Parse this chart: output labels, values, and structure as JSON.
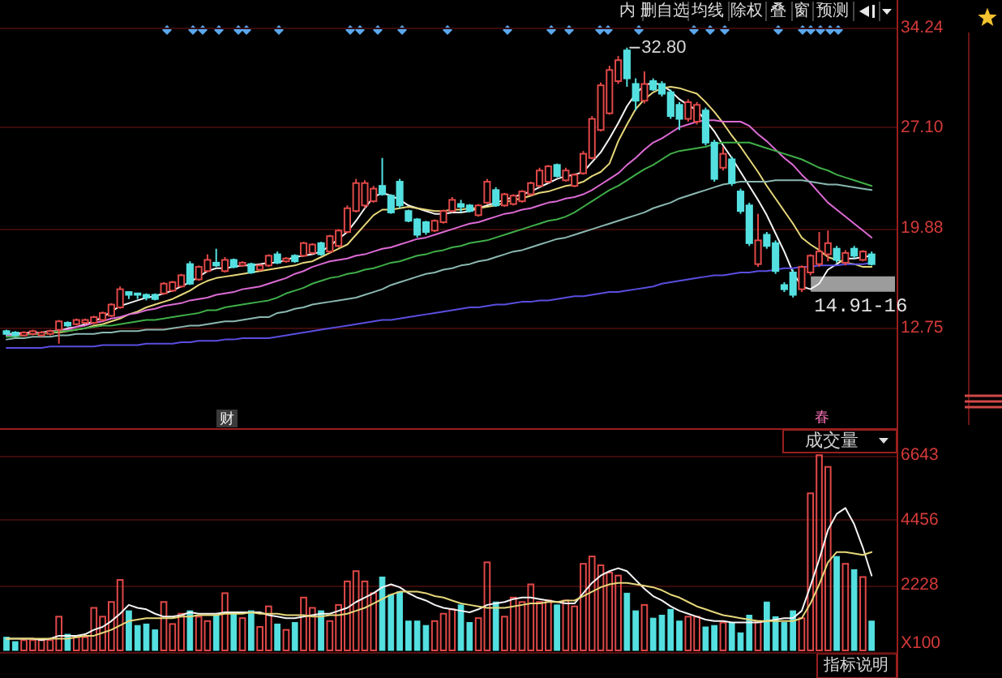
{
  "chart_data": [
    {
      "type": "candlestick",
      "categories": [
        null,
        null,
        null,
        null,
        null,
        null,
        null,
        null,
        null,
        null,
        null,
        null,
        null,
        null,
        null,
        null,
        null,
        null,
        null,
        null,
        null,
        null,
        null,
        null,
        null,
        null,
        null,
        null,
        null,
        null,
        null,
        null,
        null,
        null,
        null,
        null,
        null,
        null,
        null,
        null,
        null,
        null,
        null,
        null,
        null,
        null,
        null,
        null,
        null,
        null,
        null,
        null,
        null,
        null,
        null,
        null,
        null,
        null,
        null,
        null,
        null,
        null,
        null,
        null,
        null,
        null,
        null,
        null,
        null,
        null,
        null,
        null,
        null,
        null,
        null,
        null,
        null,
        null,
        null,
        null,
        null,
        null,
        null,
        null,
        null,
        null,
        null,
        null,
        null,
        null,
        null,
        null,
        null,
        null,
        null,
        null,
        null,
        null,
        null,
        null
      ],
      "ohlc": [
        [
          12.5,
          12.6,
          12.2,
          12.3
        ],
        [
          12.4,
          12.5,
          12.1,
          12.2
        ],
        [
          12.2,
          12.5,
          12.1,
          12.4
        ],
        [
          12.3,
          12.6,
          12.2,
          12.5
        ],
        [
          12.2,
          12.5,
          12.1,
          12.4
        ],
        [
          12.3,
          12.6,
          12.2,
          12.5
        ],
        [
          12.6,
          13.3,
          11.6,
          13.2
        ],
        [
          13.1,
          13.2,
          12.8,
          12.9
        ],
        [
          13.0,
          13.4,
          12.9,
          13.3
        ],
        [
          13.1,
          13.4,
          13.0,
          13.3
        ],
        [
          13.1,
          13.6,
          13.0,
          13.5
        ],
        [
          13.3,
          13.9,
          13.2,
          13.8
        ],
        [
          13.6,
          14.5,
          13.5,
          14.4
        ],
        [
          14.2,
          15.7,
          14.1,
          15.5
        ],
        [
          15.3,
          15.3,
          14.8,
          15.1
        ],
        [
          15.2,
          15.2,
          14.8,
          15.1
        ],
        [
          15.1,
          15.2,
          14.7,
          14.9
        ],
        [
          15.1,
          15.2,
          14.7,
          14.8
        ],
        [
          15.2,
          16.0,
          15.1,
          15.9
        ],
        [
          15.4,
          16.1,
          15.3,
          16.0
        ],
        [
          15.7,
          16.6,
          15.6,
          16.5
        ],
        [
          17.3,
          17.5,
          15.8,
          15.9
        ],
        [
          16.2,
          17.2,
          16.1,
          17.1
        ],
        [
          16.8,
          18.0,
          16.7,
          17.6
        ],
        [
          17.4,
          18.4,
          17.1,
          17.2
        ],
        [
          16.8,
          17.8,
          16.7,
          17.6
        ],
        [
          17.6,
          17.7,
          17.0,
          17.1
        ],
        [
          17.2,
          17.5,
          17.1,
          17.4
        ],
        [
          17.3,
          17.4,
          16.6,
          16.7
        ],
        [
          16.9,
          17.3,
          16.8,
          17.2
        ],
        [
          17.2,
          18.0,
          17.1,
          17.9
        ],
        [
          18.0,
          18.2,
          17.3,
          17.4
        ],
        [
          17.5,
          17.8,
          17.4,
          17.7
        ],
        [
          17.9,
          18.0,
          17.4,
          17.5
        ],
        [
          17.9,
          18.9,
          17.8,
          18.8
        ],
        [
          18.1,
          18.8,
          18.0,
          18.7
        ],
        [
          18.8,
          18.9,
          17.9,
          18.0
        ],
        [
          18.2,
          19.4,
          18.1,
          19.3
        ],
        [
          18.6,
          19.8,
          18.5,
          19.7
        ],
        [
          19.6,
          21.5,
          19.5,
          21.3
        ],
        [
          21.1,
          23.4,
          21.0,
          23.1
        ],
        [
          21.5,
          23.3,
          21.3,
          23.1
        ],
        [
          21.8,
          22.9,
          21.7,
          22.7
        ],
        [
          22.9,
          24.9,
          22.2,
          22.3
        ],
        [
          22.2,
          22.3,
          20.9,
          21.0
        ],
        [
          23.2,
          23.4,
          21.3,
          21.5
        ],
        [
          21.1,
          21.2,
          20.3,
          20.4
        ],
        [
          20.5,
          20.6,
          19.2,
          19.4
        ],
        [
          20.3,
          20.4,
          19.4,
          19.6
        ],
        [
          19.7,
          20.5,
          19.6,
          20.4
        ],
        [
          20.3,
          21.2,
          20.2,
          21.1
        ],
        [
          21.1,
          22.1,
          21.0,
          21.9
        ],
        [
          21.6,
          21.9,
          21.0,
          21.4
        ],
        [
          21.5,
          21.6,
          21.0,
          21.1
        ],
        [
          20.8,
          21.6,
          20.7,
          21.5
        ],
        [
          21.7,
          23.4,
          21.6,
          23.2
        ],
        [
          22.6,
          22.8,
          21.4,
          21.5
        ],
        [
          21.5,
          22.4,
          21.4,
          22.3
        ],
        [
          21.6,
          22.3,
          21.5,
          22.2
        ],
        [
          21.8,
          22.6,
          21.7,
          22.5
        ],
        [
          22.3,
          23.2,
          22.2,
          23.1
        ],
        [
          22.9,
          24.2,
          22.8,
          24.0
        ],
        [
          23.2,
          24.4,
          23.1,
          24.3
        ],
        [
          24.4,
          24.5,
          23.5,
          23.6
        ],
        [
          23.3,
          24.2,
          23.2,
          24.0
        ],
        [
          22.9,
          23.8,
          22.8,
          23.7
        ],
        [
          23.8,
          25.4,
          23.7,
          25.2
        ],
        [
          24.9,
          27.9,
          24.8,
          27.7
        ],
        [
          26.9,
          30.3,
          26.8,
          30.1
        ],
        [
          28.1,
          31.5,
          28.0,
          31.2
        ],
        [
          30.4,
          32.2,
          30.2,
          31.9
        ],
        [
          32.6,
          32.8,
          30.0,
          30.6
        ],
        [
          30.2,
          30.6,
          28.3,
          29.0
        ],
        [
          29.0,
          31.1,
          28.8,
          30.2
        ],
        [
          30.4,
          30.6,
          29.7,
          29.8
        ],
        [
          30.2,
          30.4,
          29.3,
          29.5
        ],
        [
          29.6,
          29.8,
          27.7,
          27.9
        ],
        [
          28.7,
          28.9,
          26.9,
          27.7
        ],
        [
          27.7,
          29.1,
          27.5,
          28.9
        ],
        [
          27.5,
          28.9,
          27.3,
          28.7
        ],
        [
          28.3,
          28.5,
          25.8,
          26.0
        ],
        [
          26.0,
          26.2,
          23.2,
          23.4
        ],
        [
          24.2,
          25.7,
          24.0,
          25.2
        ],
        [
          24.8,
          25.0,
          22.9,
          23.1
        ],
        [
          22.5,
          22.7,
          20.9,
          21.1
        ],
        [
          21.5,
          21.7,
          18.6,
          18.8
        ],
        [
          17.3,
          20.9,
          17.1,
          19.0
        ],
        [
          19.4,
          19.6,
          18.4,
          18.6
        ],
        [
          18.8,
          19.0,
          16.6,
          16.8
        ],
        [
          15.8,
          16.0,
          15.3,
          15.5
        ],
        [
          16.7,
          16.9,
          14.91,
          15.1
        ],
        [
          15.5,
          17.2,
          15.3,
          17.1
        ],
        [
          16.7,
          18.0,
          16.5,
          17.9
        ],
        [
          17.3,
          19.6,
          17.1,
          18.2
        ],
        [
          18.0,
          19.7,
          17.5,
          18.8
        ],
        [
          18.4,
          18.6,
          17.4,
          17.6
        ],
        [
          17.4,
          18.3,
          17.2,
          18.1
        ],
        [
          18.4,
          18.6,
          17.7,
          17.9
        ],
        [
          17.6,
          18.3,
          17.5,
          18.2
        ],
        [
          18.0,
          18.2,
          17.2,
          17.3
        ]
      ],
      "colors": [
        "#54e0e0",
        "#54e0e0",
        "#e04848",
        "#e04848",
        "#e04848",
        "#e04848",
        "#e04848",
        "#54e0e0",
        "#e04848",
        "#e04848",
        "#e04848",
        "#e04848",
        "#e04848",
        "#e04848",
        "#54e0e0",
        "#54e0e0",
        "#54e0e0",
        "#54e0e0",
        "#e04848",
        "#e04848",
        "#e04848",
        "#54e0e0",
        "#e04848",
        "#e04848",
        "#54e0e0",
        "#e04848",
        "#54e0e0",
        "#e04848",
        "#54e0e0",
        "#e04848",
        "#e04848",
        "#54e0e0",
        "#e04848",
        "#54e0e0",
        "#e04848",
        "#e04848",
        "#54e0e0",
        "#e04848",
        "#e04848",
        "#e04848",
        "#e04848",
        "#e04848",
        "#e04848",
        "#54e0e0",
        "#54e0e0",
        "#54e0e0",
        "#54e0e0",
        "#54e0e0",
        "#54e0e0",
        "#e04848",
        "#e04848",
        "#e04848",
        "#54e0e0",
        "#54e0e0",
        "#e04848",
        "#e04848",
        "#54e0e0",
        "#e04848",
        "#e04848",
        "#e04848",
        "#e04848",
        "#e04848",
        "#e04848",
        "#54e0e0",
        "#e04848",
        "#e04848",
        "#e04848",
        "#e04848",
        "#e04848",
        "#e04848",
        "#e04848",
        "#54e0e0",
        "#54e0e0",
        "#e04848",
        "#54e0e0",
        "#54e0e0",
        "#54e0e0",
        "#54e0e0",
        "#e04848",
        "#e04848",
        "#54e0e0",
        "#54e0e0",
        "#e04848",
        "#54e0e0",
        "#54e0e0",
        "#54e0e0",
        "#e04848",
        "#54e0e0",
        "#54e0e0",
        "#54e0e0",
        "#54e0e0",
        "#e04848",
        "#e04848",
        "#e04848",
        "#e04848",
        "#54e0e0",
        "#e04848",
        "#54e0e0",
        "#e04848",
        "#54e0e0"
      ],
      "series": [
        {
          "type": "line",
          "color": "#f4f4f4",
          "values": [
            12.3,
            12.3,
            12.4,
            12.4,
            12.4,
            12.5,
            12.5,
            12.7,
            12.8,
            13.0,
            13.2,
            13.5,
            13.9,
            14.3,
            14.5,
            14.7,
            14.9,
            15.0,
            15.2,
            15.4,
            15.7,
            16.0,
            16.4,
            16.8,
            17.0,
            17.0,
            17.1,
            17.2,
            17.2,
            17.3,
            17.4,
            17.4,
            17.6,
            17.8,
            17.9,
            18.0,
            18.2,
            18.6,
            19.1,
            19.6,
            20.4,
            21.3,
            22.1,
            22.4,
            22.2,
            21.9,
            21.5,
            21.3,
            21.1,
            20.9,
            20.9,
            21.0,
            21.0,
            21.1,
            21.3,
            21.5,
            21.7,
            21.9,
            22.1,
            22.3,
            22.5,
            22.8,
            23.1,
            23.4,
            23.6,
            23.7,
            23.9,
            24.6,
            25.3,
            26.3,
            27.4,
            28.6,
            29.5,
            30.1,
            30.3,
            30.1,
            29.7,
            29.1,
            28.7,
            28.3,
            27.6,
            26.8,
            25.8,
            24.9,
            23.9,
            22.9,
            21.9,
            20.8,
            19.5,
            18.2,
            16.7,
            15.7,
            15.5,
            15.9,
            16.9,
            17.3,
            17.7,
            17.7,
            17.8,
            17.9
          ]
        },
        {
          "type": "line",
          "color": "#e6d77a",
          "values": [
            12.2,
            12.2,
            12.3,
            12.3,
            12.3,
            12.4,
            12.4,
            12.5,
            12.6,
            12.7,
            12.9,
            13.0,
            13.2,
            13.4,
            13.7,
            13.9,
            14.2,
            14.4,
            14.6,
            14.8,
            15.1,
            15.4,
            15.8,
            16.1,
            16.3,
            16.4,
            16.5,
            16.6,
            16.7,
            16.8,
            16.9,
            17.0,
            17.1,
            17.2,
            17.4,
            17.5,
            17.8,
            18.1,
            18.4,
            18.7,
            19.4,
            20.1,
            20.8,
            21.2,
            21.2,
            21.3,
            21.4,
            21.3,
            21.2,
            21.1,
            21.1,
            21.2,
            21.2,
            21.3,
            21.3,
            21.4,
            21.5,
            21.7,
            21.9,
            22.0,
            22.2,
            22.4,
            22.5,
            22.7,
            22.9,
            23.0,
            23.2,
            23.6,
            23.9,
            24.5,
            26.1,
            27.3,
            28.4,
            29.1,
            29.6,
            29.9,
            30.0,
            29.9,
            29.7,
            29.5,
            28.9,
            28.2,
            27.4,
            26.5,
            25.7,
            24.8,
            23.9,
            22.9,
            22.0,
            21.1,
            20.2,
            19.2,
            18.7,
            18.3,
            17.8,
            17.6,
            17.4,
            17.3,
            17.1,
            17.1
          ]
        },
        {
          "type": "line",
          "color": "#dc6ad4",
          "values": [
            12.2,
            12.2,
            12.3,
            12.3,
            12.4,
            12.4,
            12.5,
            12.6,
            12.8,
            12.9,
            13.1,
            13.2,
            13.4,
            13.5,
            13.7,
            13.8,
            14.0,
            14.1,
            14.3,
            14.4,
            14.5,
            14.7,
            14.8,
            14.9,
            15.1,
            15.2,
            15.3,
            15.5,
            15.6,
            15.7,
            15.9,
            16.1,
            16.3,
            16.6,
            16.8,
            17.1,
            17.3,
            17.5,
            17.6,
            17.7,
            17.9,
            18.0,
            18.2,
            18.4,
            18.5,
            18.7,
            18.9,
            19.1,
            19.2,
            19.4,
            19.6,
            19.8,
            20.0,
            20.2,
            20.3,
            20.5,
            20.7,
            20.9,
            21.0,
            21.2,
            21.3,
            21.5,
            21.7,
            21.8,
            22.0,
            22.1,
            22.3,
            22.6,
            23.0,
            23.4,
            23.8,
            24.4,
            24.9,
            25.5,
            26.0,
            26.3,
            26.7,
            27.1,
            27.3,
            27.5,
            27.6,
            27.6,
            27.5,
            27.5,
            27.5,
            27.2,
            26.6,
            26.1,
            25.5,
            24.9,
            24.4,
            23.7,
            23.1,
            22.4,
            21.7,
            21.2,
            20.7,
            20.2,
            19.7,
            19.2
          ]
        },
        {
          "type": "line",
          "color": "#3fae48",
          "values": [
            12.1,
            12.1,
            12.2,
            12.3,
            12.3,
            12.4,
            12.5,
            12.5,
            12.6,
            12.7,
            12.8,
            12.9,
            12.9,
            13.0,
            13.1,
            13.2,
            13.3,
            13.3,
            13.4,
            13.5,
            13.6,
            13.7,
            13.8,
            14.0,
            14.0,
            14.2,
            14.3,
            14.4,
            14.5,
            14.6,
            14.7,
            14.9,
            15.2,
            15.4,
            15.6,
            15.9,
            16.1,
            16.3,
            16.4,
            16.6,
            16.7,
            16.9,
            17.0,
            17.2,
            17.4,
            17.5,
            17.7,
            17.9,
            18.0,
            18.2,
            18.3,
            18.5,
            18.6,
            18.8,
            18.9,
            19.0,
            19.2,
            19.4,
            19.6,
            19.8,
            20.0,
            20.2,
            20.4,
            20.5,
            20.7,
            21.0,
            21.4,
            21.8,
            22.2,
            22.6,
            22.9,
            23.3,
            23.7,
            24.1,
            24.4,
            24.8,
            25.2,
            25.4,
            25.5,
            25.6,
            25.7,
            25.9,
            26.0,
            26.0,
            26.0,
            26.0,
            25.8,
            25.6,
            25.4,
            25.2,
            25.0,
            24.8,
            24.5,
            24.2,
            24.0,
            23.7,
            23.5,
            23.3,
            23.1,
            22.9
          ]
        },
        {
          "type": "line",
          "color": "#8ab8b0",
          "values": [
            11.9,
            12.0,
            12.0,
            12.1,
            12.1,
            12.1,
            12.2,
            12.2,
            12.3,
            12.3,
            12.3,
            12.4,
            12.4,
            12.5,
            12.5,
            12.5,
            12.6,
            12.6,
            12.6,
            12.7,
            12.8,
            12.9,
            12.9,
            13.0,
            13.1,
            13.2,
            13.2,
            13.3,
            13.4,
            13.5,
            13.5,
            13.8,
            13.9,
            14.1,
            14.2,
            14.4,
            14.5,
            14.6,
            14.7,
            14.8,
            14.9,
            15.1,
            15.3,
            15.5,
            15.8,
            16.0,
            16.2,
            16.4,
            16.6,
            16.7,
            16.9,
            17.0,
            17.2,
            17.3,
            17.5,
            17.6,
            17.8,
            18.0,
            18.2,
            18.3,
            18.5,
            18.7,
            18.9,
            19.1,
            19.2,
            19.4,
            19.6,
            19.8,
            20.0,
            20.2,
            20.4,
            20.6,
            20.8,
            21.0,
            21.3,
            21.5,
            21.7,
            22.0,
            22.2,
            22.4,
            22.6,
            22.8,
            23.0,
            23.1,
            23.2,
            23.2,
            23.2,
            23.2,
            23.3,
            23.3,
            23.3,
            23.3,
            23.2,
            23.1,
            23.0,
            23.0,
            22.9,
            22.8,
            22.7,
            22.6
          ]
        },
        {
          "type": "line",
          "color": "#5a4ee0",
          "values": [
            11.3,
            11.3,
            11.3,
            11.3,
            11.3,
            11.4,
            11.4,
            11.4,
            11.4,
            11.4,
            11.4,
            11.5,
            11.5,
            11.5,
            11.5,
            11.5,
            11.6,
            11.6,
            11.6,
            11.6,
            11.7,
            11.7,
            11.8,
            11.8,
            11.8,
            11.9,
            11.9,
            12.0,
            12.0,
            12.0,
            12.0,
            12.1,
            12.2,
            12.3,
            12.4,
            12.5,
            12.6,
            12.7,
            12.8,
            12.9,
            13.0,
            13.1,
            13.2,
            13.3,
            13.3,
            13.4,
            13.5,
            13.6,
            13.7,
            13.8,
            13.9,
            14.0,
            14.1,
            14.2,
            14.2,
            14.3,
            14.4,
            14.4,
            14.5,
            14.6,
            14.6,
            14.7,
            14.7,
            14.8,
            14.9,
            15.0,
            15.0,
            15.1,
            15.2,
            15.3,
            15.3,
            15.4,
            15.5,
            15.6,
            15.7,
            15.9,
            16.0,
            16.1,
            16.2,
            16.3,
            16.4,
            16.5,
            16.5,
            16.6,
            16.7,
            16.7,
            16.8,
            16.8,
            16.9,
            17.0,
            17.0,
            17.1,
            17.1,
            17.2,
            17.2,
            17.2,
            17.3,
            17.3,
            17.3,
            17.4
          ]
        }
      ],
      "ylim": [
        5.49,
        36.21
      ],
      "yticks": [
        34.24,
        {
          "value": 27.1,
          "label": "27.10"
        },
        19.88,
        12.75
      ],
      "grid": "y",
      "tick_labels": "y",
      "annotations": [
        "32.80",
        "14.91-16",
        "财",
        "春",
        "内",
        "删自选",
        "均线",
        "除权",
        "叠",
        "窗",
        "预测"
      ]
    },
    {
      "type": "bar",
      "title": "成交量",
      "ylabel": "X100",
      "categories": [
        null,
        null,
        null,
        null,
        null,
        null,
        null,
        null,
        null,
        null,
        null,
        null,
        null,
        null,
        null,
        null,
        null,
        null,
        null,
        null,
        null,
        null,
        null,
        null,
        null,
        null,
        null,
        null,
        null,
        null,
        null,
        null,
        null,
        null,
        null,
        null,
        null,
        null,
        null,
        null,
        null,
        null,
        null,
        null,
        null,
        null,
        null,
        null,
        null,
        null,
        null,
        null,
        null,
        null,
        null,
        null,
        null,
        null,
        null,
        null,
        null,
        null,
        null,
        null,
        null,
        null,
        null,
        null,
        null,
        null,
        null,
        null,
        null,
        null,
        null,
        null,
        null,
        null,
        null,
        null,
        null,
        null,
        null,
        null,
        null,
        null,
        null,
        null,
        null,
        null,
        null,
        null,
        null,
        null,
        null,
        null,
        null,
        null,
        null,
        null
      ],
      "series": [
        {
          "colors": [
            "#54e0e0",
            "#54e0e0",
            "#e04848",
            "#e04848",
            "#e04848",
            "#e04848",
            "#e04848",
            "#54e0e0",
            "#e04848",
            "#e04848",
            "#e04848",
            "#e04848",
            "#e04848",
            "#e04848",
            "#54e0e0",
            "#54e0e0",
            "#54e0e0",
            "#54e0e0",
            "#e04848",
            "#e04848",
            "#e04848",
            "#54e0e0",
            "#e04848",
            "#e04848",
            "#54e0e0",
            "#e04848",
            "#54e0e0",
            "#e04848",
            "#54e0e0",
            "#e04848",
            "#e04848",
            "#54e0e0",
            "#e04848",
            "#54e0e0",
            "#e04848",
            "#e04848",
            "#54e0e0",
            "#e04848",
            "#e04848",
            "#e04848",
            "#e04848",
            "#e04848",
            "#e04848",
            "#54e0e0",
            "#54e0e0",
            "#54e0e0",
            "#54e0e0",
            "#54e0e0",
            "#54e0e0",
            "#e04848",
            "#e04848",
            "#e04848",
            "#54e0e0",
            "#54e0e0",
            "#e04848",
            "#e04848",
            "#54e0e0",
            "#e04848",
            "#e04848",
            "#e04848",
            "#e04848",
            "#e04848",
            "#e04848",
            "#54e0e0",
            "#e04848",
            "#e04848",
            "#e04848",
            "#e04848",
            "#e04848",
            "#e04848",
            "#e04848",
            "#54e0e0",
            "#54e0e0",
            "#e04848",
            "#54e0e0",
            "#54e0e0",
            "#54e0e0",
            "#54e0e0",
            "#e04848",
            "#e04848",
            "#54e0e0",
            "#54e0e0",
            "#e04848",
            "#54e0e0",
            "#54e0e0",
            "#54e0e0",
            "#e04848",
            "#54e0e0",
            "#54e0e0",
            "#54e0e0",
            "#54e0e0",
            "#e04848",
            "#e04848",
            "#e04848",
            "#e04848",
            "#54e0e0",
            "#e04848",
            "#54e0e0",
            "#e04848",
            "#54e0e0"
          ],
          "values": [
            450,
            300,
            350,
            350,
            350,
            350,
            1150,
            550,
            450,
            450,
            1450,
            1150,
            1650,
            2400,
            1350,
            850,
            900,
            700,
            1650,
            900,
            1250,
            1350,
            1150,
            1000,
            1200,
            1950,
            1300,
            1100,
            1350,
            800,
            1500,
            900,
            700,
            950,
            1800,
            1450,
            1350,
            1000,
            1550,
            2350,
            2700,
            2350,
            1950,
            2500,
            1900,
            2000,
            1000,
            1000,
            850,
            1000,
            1250,
            1400,
            1550,
            950,
            1100,
            3000,
            1650,
            1150,
            1800,
            1650,
            2250,
            1650,
            1700,
            1550,
            1700,
            1500,
            2950,
            3200,
            2900,
            2650,
            2550,
            1950,
            1350,
            1550,
            1100,
            1200,
            1400,
            1000,
            1150,
            1150,
            800,
            850,
            950,
            950,
            600,
            1200,
            1000,
            1650,
            1150,
            950,
            1350,
            1100,
            5350,
            6650,
            6250,
            3200,
            2950,
            2750,
            2500,
            1000
          ]
        },
        {
          "type": "line",
          "color": "#f4f4f4",
          "values": [
            400,
            400,
            400,
            400,
            350,
            400,
            500,
            500,
            500,
            550,
            700,
            800,
            1000,
            1250,
            1550,
            1450,
            1400,
            1250,
            1150,
            1150,
            1200,
            1300,
            1250,
            1250,
            1250,
            1300,
            1300,
            1300,
            1300,
            1300,
            1200,
            1150,
            1100,
            1100,
            1150,
            1200,
            1250,
            1250,
            1350,
            1450,
            1650,
            1800,
            1950,
            2150,
            2250,
            2150,
            1950,
            1800,
            1700,
            1550,
            1450,
            1400,
            1350,
            1300,
            1400,
            1550,
            1600,
            1650,
            1750,
            1800,
            1800,
            1750,
            1700,
            1650,
            1600,
            1600,
            1950,
            2300,
            2550,
            2700,
            2800,
            2700,
            2400,
            2100,
            1850,
            1700,
            1500,
            1350,
            1250,
            1150,
            1050,
            1000,
            1000,
            950,
            950,
            950,
            950,
            1000,
            1050,
            1100,
            1100,
            1350,
            2200,
            3100,
            4100,
            4650,
            4850,
            4300,
            3500,
            2550
          ]
        },
        {
          "type": "line",
          "color": "#e6d77a",
          "values": [
            400,
            400,
            400,
            400,
            400,
            400,
            400,
            400,
            450,
            500,
            500,
            600,
            700,
            850,
            1000,
            1050,
            1100,
            1100,
            1100,
            1100,
            1150,
            1150,
            1200,
            1200,
            1200,
            1250,
            1250,
            1250,
            1300,
            1250,
            1250,
            1250,
            1200,
            1200,
            1200,
            1150,
            1150,
            1200,
            1200,
            1250,
            1350,
            1450,
            1600,
            1750,
            1900,
            2000,
            2000,
            2000,
            1950,
            1850,
            1800,
            1700,
            1600,
            1550,
            1500,
            1450,
            1450,
            1450,
            1500,
            1550,
            1600,
            1600,
            1650,
            1650,
            1700,
            1700,
            1850,
            2000,
            2150,
            2250,
            2300,
            2300,
            2250,
            2200,
            2150,
            2050,
            1900,
            1800,
            1650,
            1500,
            1400,
            1300,
            1200,
            1150,
            1100,
            1050,
            1000,
            1000,
            1000,
            1000,
            1000,
            1100,
            1600,
            2250,
            3000,
            3350,
            3350,
            3300,
            3250,
            3350
          ]
        }
      ],
      "ylim": [
        0,
        7540
      ],
      "yticks": [
        6643,
        4456,
        2228
      ],
      "grid": "y",
      "tick_labels": "y",
      "annotations": [
        "指标说明"
      ]
    }
  ]
}
